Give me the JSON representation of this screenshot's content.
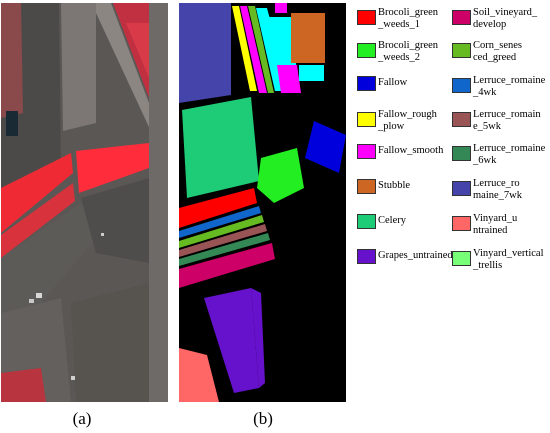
{
  "captions": {
    "a": "(a)",
    "b": "(b)"
  },
  "legend": {
    "left_column": [
      {
        "label_lines": [
          "Brocoli_green",
          "_weeds_1"
        ],
        "color": "#ff0000"
      },
      {
        "label_lines": [
          "Brocoli_green",
          "_weeds_2"
        ],
        "color": "#22ee22"
      },
      {
        "label_lines": [
          "Fallow"
        ],
        "color": "#0000dd"
      },
      {
        "label_lines": [
          "Fallow_rough",
          "_plow"
        ],
        "color": "#ffff00"
      },
      {
        "label_lines": [
          "Fallow_smooth"
        ],
        "color": "#ff00ff"
      },
      {
        "label_lines": [
          "Stubble"
        ],
        "color": "#cc6622"
      },
      {
        "label_lines": [
          "Celery"
        ],
        "color": "#1ecc77"
      },
      {
        "label_lines": [
          "Grapes_untrained"
        ],
        "color": "#6611cc"
      }
    ],
    "right_column": [
      {
        "label_lines": [
          "Soil_vineyard_",
          "develop"
        ],
        "color": "#cc0066"
      },
      {
        "label_lines": [
          "Corn_senes",
          "ced_greed"
        ],
        "color": "#66bb22"
      },
      {
        "label_lines": [
          "Lerruce_romaine",
          "_4wk"
        ],
        "color": "#1166cc"
      },
      {
        "label_lines": [
          "Lerruce_romain",
          "e_5wk"
        ],
        "color": "#995555"
      },
      {
        "label_lines": [
          "Lerruce_romaine",
          "_6wk"
        ],
        "color": "#338855"
      },
      {
        "label_lines": [
          "Lerruce_ro",
          "maine_7wk"
        ],
        "color": "#4444aa"
      },
      {
        "label_lines": [
          "Vinyard_u",
          "ntrained"
        ],
        "color": "#ff6666"
      },
      {
        "label_lines": [
          "Vinyard_vertical",
          "_trellis"
        ],
        "color": "#77ff77"
      }
    ]
  }
}
